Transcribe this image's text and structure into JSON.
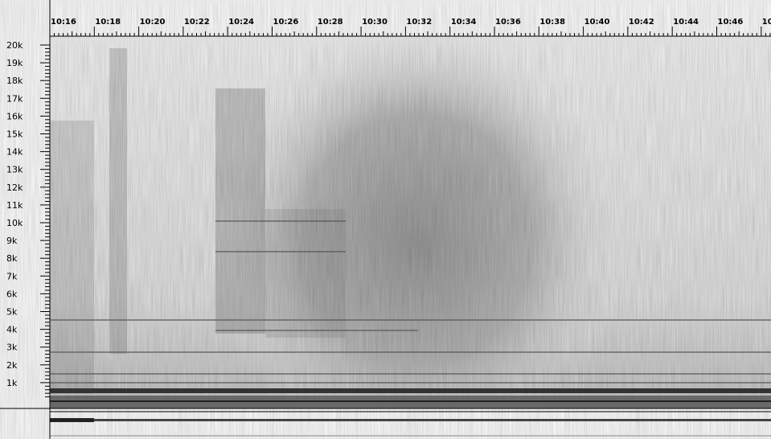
{
  "time_ruler": {
    "labels": [
      "10:16",
      "10:18",
      "10:20",
      "10:22",
      "10:24",
      "10:26",
      "10:28",
      "10:30",
      "10:32",
      "10:34",
      "10:36",
      "10:38",
      "10:40",
      "10:42",
      "10:44",
      "10:46",
      "10"
    ]
  },
  "frequency_ruler": {
    "labels": [
      "20k",
      "19k",
      "18k",
      "17k",
      "16k",
      "15k",
      "14k",
      "13k",
      "12k",
      "11k",
      "10k",
      "9k",
      "8k",
      "7k",
      "6k",
      "5k",
      "4k",
      "3k",
      "2k",
      "1k"
    ]
  }
}
